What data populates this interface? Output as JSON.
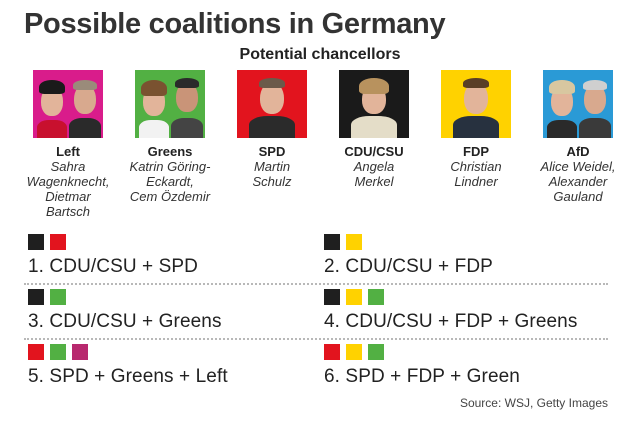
{
  "title": "Possible coalitions in Germany",
  "subtitle": "Potential chancellors",
  "parties": [
    {
      "name": "Left",
      "people": "Sahra\nWagenknecht,\nDietmar\nBartsch",
      "color": "#d91c8b"
    },
    {
      "name": "Greens",
      "people": "Katrin Göring-\nEckardt,\nCem Özdemir",
      "color": "#52b043"
    },
    {
      "name": "SPD",
      "people": "Martin\nSchulz",
      "color": "#e2141e"
    },
    {
      "name": "CDU/CSU",
      "people": "Angela\nMerkel",
      "color": "#1a1a1a"
    },
    {
      "name": "FDP",
      "people": "Christian\nLindner",
      "color": "#ffd200"
    },
    {
      "name": "AfD",
      "people": "Alice Weidel,\nAlexander\nGauland",
      "color": "#2a9ad6"
    }
  ],
  "colors": {
    "cdu": "#1f1f1f",
    "spd": "#e2141e",
    "fdp": "#ffd200",
    "greens": "#52b043",
    "left": "#b8286e"
  },
  "coalitions": [
    {
      "label": "1. CDU/CSU + SPD",
      "squares": [
        "#1f1f1f",
        "#e2141e"
      ]
    },
    {
      "label": "2. CDU/CSU + FDP",
      "squares": [
        "#1f1f1f",
        "#ffd200"
      ]
    },
    {
      "label": "3. CDU/CSU + Greens",
      "squares": [
        "#1f1f1f",
        "#52b043"
      ]
    },
    {
      "label": "4. CDU/CSU + FDP + Greens",
      "squares": [
        "#1f1f1f",
        "#ffd200",
        "#52b043"
      ]
    },
    {
      "label": "5. SPD + Greens + Left",
      "squares": [
        "#e2141e",
        "#52b043",
        "#b8286e"
      ]
    },
    {
      "label": "6. SPD + FDP + Green",
      "squares": [
        "#e2141e",
        "#ffd200",
        "#52b043"
      ]
    }
  ],
  "source": "Source: WSJ, Getty Images"
}
